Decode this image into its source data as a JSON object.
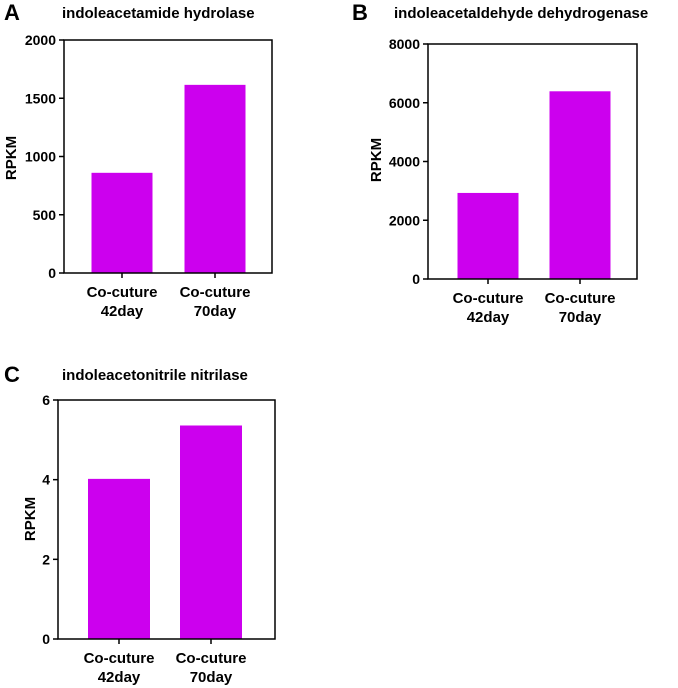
{
  "chart_data": [
    {
      "type": "bar",
      "panel": "A",
      "title": "indoleacetamide hydrolase",
      "categories": [
        "Co-cuture\n42day",
        "Co-cuture\n70day"
      ],
      "values": [
        860,
        1615
      ],
      "ylabel": "RPKM",
      "xlabel": "",
      "ylim": [
        0,
        2000
      ],
      "yticks": [
        0,
        500,
        1000,
        1500,
        2000
      ],
      "bar_color": "#cc00ee"
    },
    {
      "type": "bar",
      "panel": "B",
      "title": "indoleacetaldehyde dehydrogenase",
      "categories": [
        "Co-cuture\n42day",
        "Co-cuture\n70day"
      ],
      "values": [
        2930,
        6390
      ],
      "ylabel": "RPKM",
      "xlabel": "",
      "ylim": [
        0,
        8000
      ],
      "yticks": [
        0,
        2000,
        4000,
        6000,
        8000
      ],
      "bar_color": "#cc00ee"
    },
    {
      "type": "bar",
      "panel": "C",
      "title": "indoleacetonitrile nitrilase",
      "categories": [
        "Co-cuture\n42day",
        "Co-cuture\n70day"
      ],
      "values": [
        4.02,
        5.36
      ],
      "ylabel": "RPKM",
      "xlabel": "",
      "ylim": [
        0,
        6
      ],
      "yticks": [
        0,
        2,
        4,
        6
      ],
      "bar_color": "#cc00ee"
    }
  ]
}
